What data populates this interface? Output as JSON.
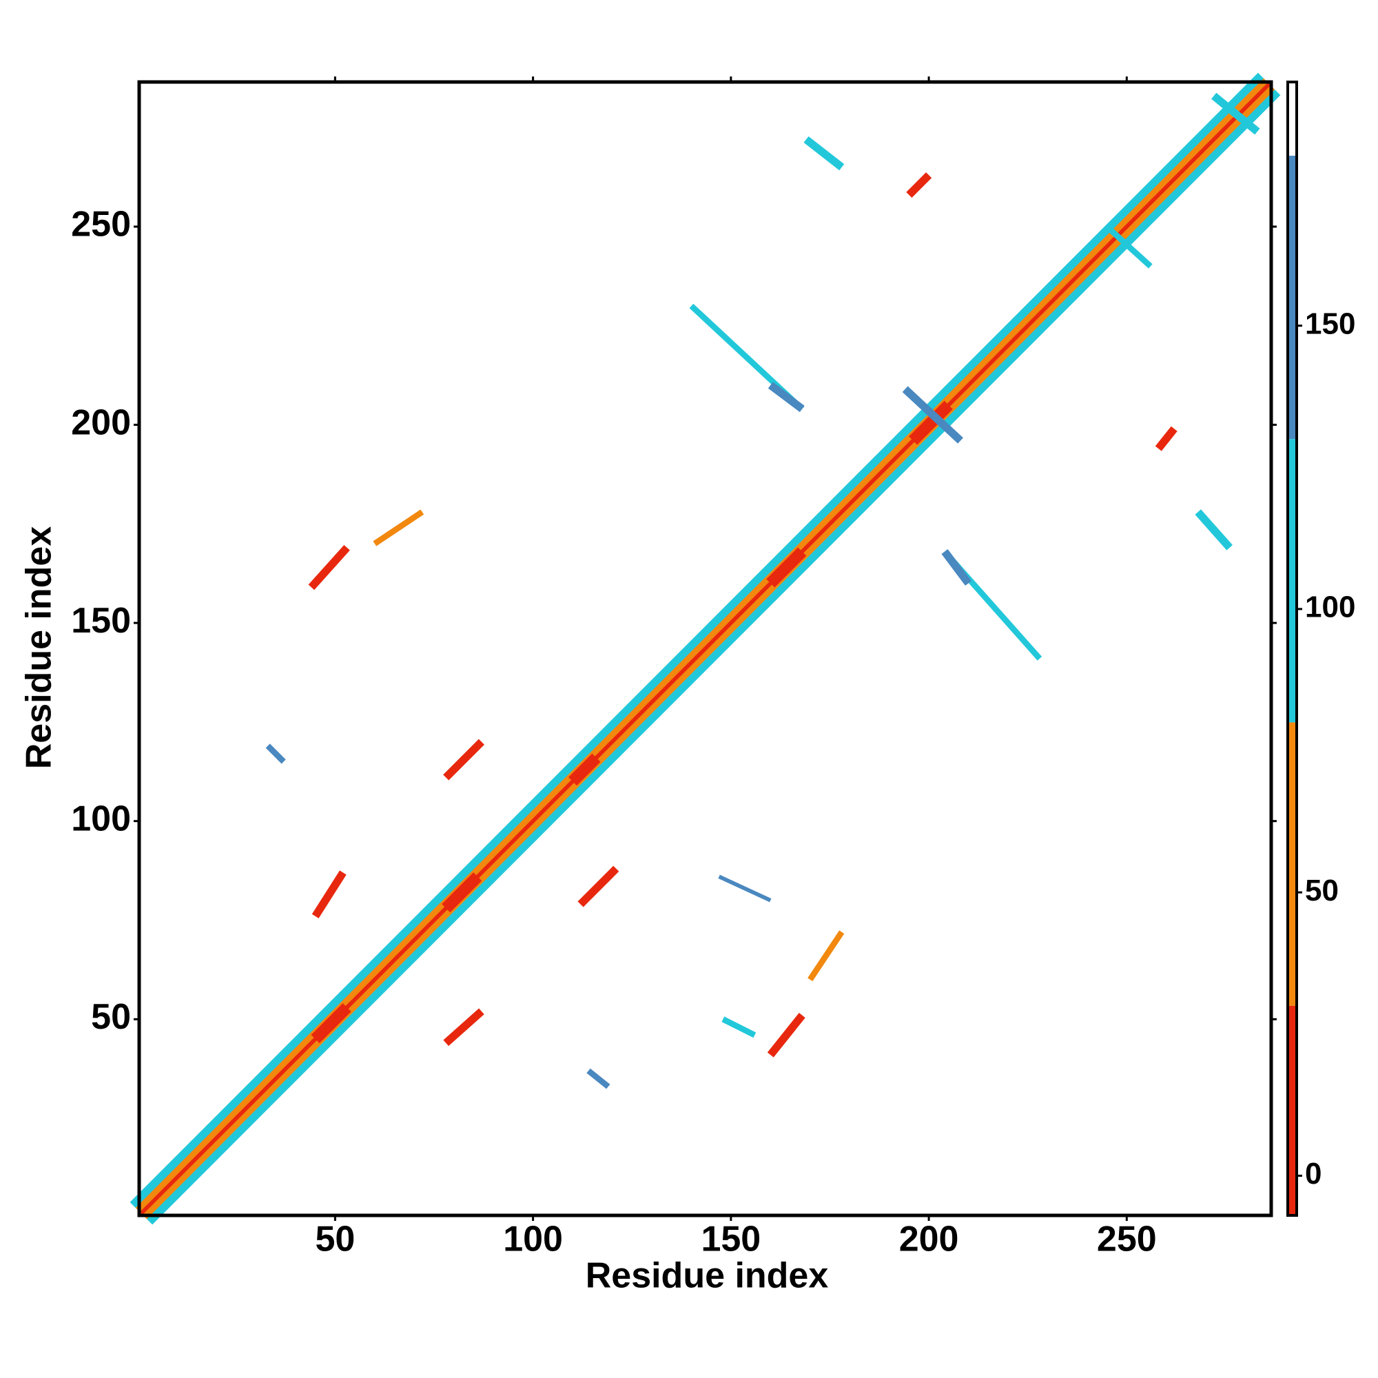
{
  "chart_data": {
    "type": "contact_map",
    "x_label": "Residue index",
    "y_label": "Residue index",
    "xlim": [
      0.5,
      286.5
    ],
    "ylim": [
      0.5,
      286.5
    ],
    "xticks": [
      50,
      100,
      150,
      200,
      250
    ],
    "yticks": [
      50,
      100,
      150,
      200,
      250
    ],
    "colorbar_lim": [
      -7,
      193
    ],
    "colorbar_ticks": [
      0,
      50,
      100,
      150
    ],
    "color_scale": [
      {
        "from": -7,
        "to": 30,
        "color": "#e8280e"
      },
      {
        "from": 30,
        "to": 80,
        "color": "#f2880e"
      },
      {
        "from": 80,
        "to": 130,
        "color": "#22c8da"
      },
      {
        "from": 130,
        "to": 180,
        "color": "#4a88c0"
      },
      {
        "from": 180,
        "to": 193,
        "color": "#ffffff"
      }
    ],
    "features": [
      {
        "x": [
          1,
          286
        ],
        "y": [
          1,
          286
        ],
        "value": 100,
        "width": 8
      },
      {
        "x": [
          1,
          286
        ],
        "y": [
          1,
          286
        ],
        "value": 55,
        "width": 4
      },
      {
        "x": [
          1,
          286
        ],
        "y": [
          1,
          286
        ],
        "value": 10,
        "width": 1
      },
      {
        "x": [
          45,
          53
        ],
        "y": [
          45,
          53
        ],
        "value": 5,
        "width": 3
      },
      {
        "x": [
          78,
          86
        ],
        "y": [
          78,
          86
        ],
        "value": 5,
        "width": 3
      },
      {
        "x": [
          110,
          116
        ],
        "y": [
          110,
          116
        ],
        "value": 5,
        "width": 3
      },
      {
        "x": [
          160,
          168
        ],
        "y": [
          160,
          168
        ],
        "value": 5,
        "width": 3
      },
      {
        "x": [
          196,
          205
        ],
        "y": [
          196,
          205
        ],
        "value": 5,
        "width": 3
      },
      {
        "x": [
          78,
          87
        ],
        "y": [
          44,
          52
        ],
        "value": 20,
        "width": 2
      },
      {
        "x": [
          160,
          168
        ],
        "y": [
          41,
          51
        ],
        "value": 20,
        "width": 2
      },
      {
        "x": [
          45,
          52
        ],
        "y": [
          76,
          87
        ],
        "value": 20,
        "width": 2
      },
      {
        "x": [
          112,
          121
        ],
        "y": [
          79,
          88
        ],
        "value": 20,
        "width": 2
      },
      {
        "x": [
          78,
          87
        ],
        "y": [
          111,
          120
        ],
        "value": 20,
        "width": 2
      },
      {
        "x": [
          44,
          53
        ],
        "y": [
          159,
          169
        ],
        "value": 20,
        "width": 2
      },
      {
        "x": [
          60,
          72
        ],
        "y": [
          170,
          178
        ],
        "value": 55,
        "width": 1.5
      },
      {
        "x": [
          170,
          178
        ],
        "y": [
          60,
          72
        ],
        "value": 55,
        "width": 1.5
      },
      {
        "x": [
          195,
          200
        ],
        "y": [
          258,
          263
        ],
        "value": 20,
        "width": 2
      },
      {
        "x": [
          258,
          262
        ],
        "y": [
          194,
          199
        ],
        "value": 20,
        "width": 2
      },
      {
        "x": [
          169,
          178
        ],
        "y": [
          272,
          265
        ],
        "value": 100,
        "width": 2
      },
      {
        "x": [
          268,
          276
        ],
        "y": [
          178,
          169
        ],
        "value": 100,
        "width": 2
      },
      {
        "x": [
          140,
          168
        ],
        "y": [
          230,
          204
        ],
        "value": 100,
        "width": 1.5
      },
      {
        "x": [
          160,
          168
        ],
        "y": [
          210,
          204
        ],
        "value": 150,
        "width": 2
      },
      {
        "x": [
          194,
          208
        ],
        "y": [
          209,
          196
        ],
        "value": 150,
        "width": 2
      },
      {
        "x": [
          204,
          228
        ],
        "y": [
          168,
          141
        ],
        "value": 100,
        "width": 1.5
      },
      {
        "x": [
          204,
          210
        ],
        "y": [
          168,
          160
        ],
        "value": 150,
        "width": 2
      },
      {
        "x": [
          114,
          119
        ],
        "y": [
          37,
          33
        ],
        "value": 150,
        "width": 1.5
      },
      {
        "x": [
          33,
          37
        ],
        "y": [
          119,
          115
        ],
        "value": 150,
        "width": 1.5
      },
      {
        "x": [
          148,
          156
        ],
        "y": [
          50,
          46
        ],
        "value": 100,
        "width": 1.5
      },
      {
        "x": [
          147,
          160
        ],
        "y": [
          86,
          80
        ],
        "value": 140,
        "width": 1
      },
      {
        "x": [
          272,
          283
        ],
        "y": [
          283,
          274
        ],
        "value": 100,
        "width": 2
      },
      {
        "x": [
          245,
          256
        ],
        "y": [
          250,
          240
        ],
        "value": 100,
        "width": 1.5
      }
    ]
  }
}
